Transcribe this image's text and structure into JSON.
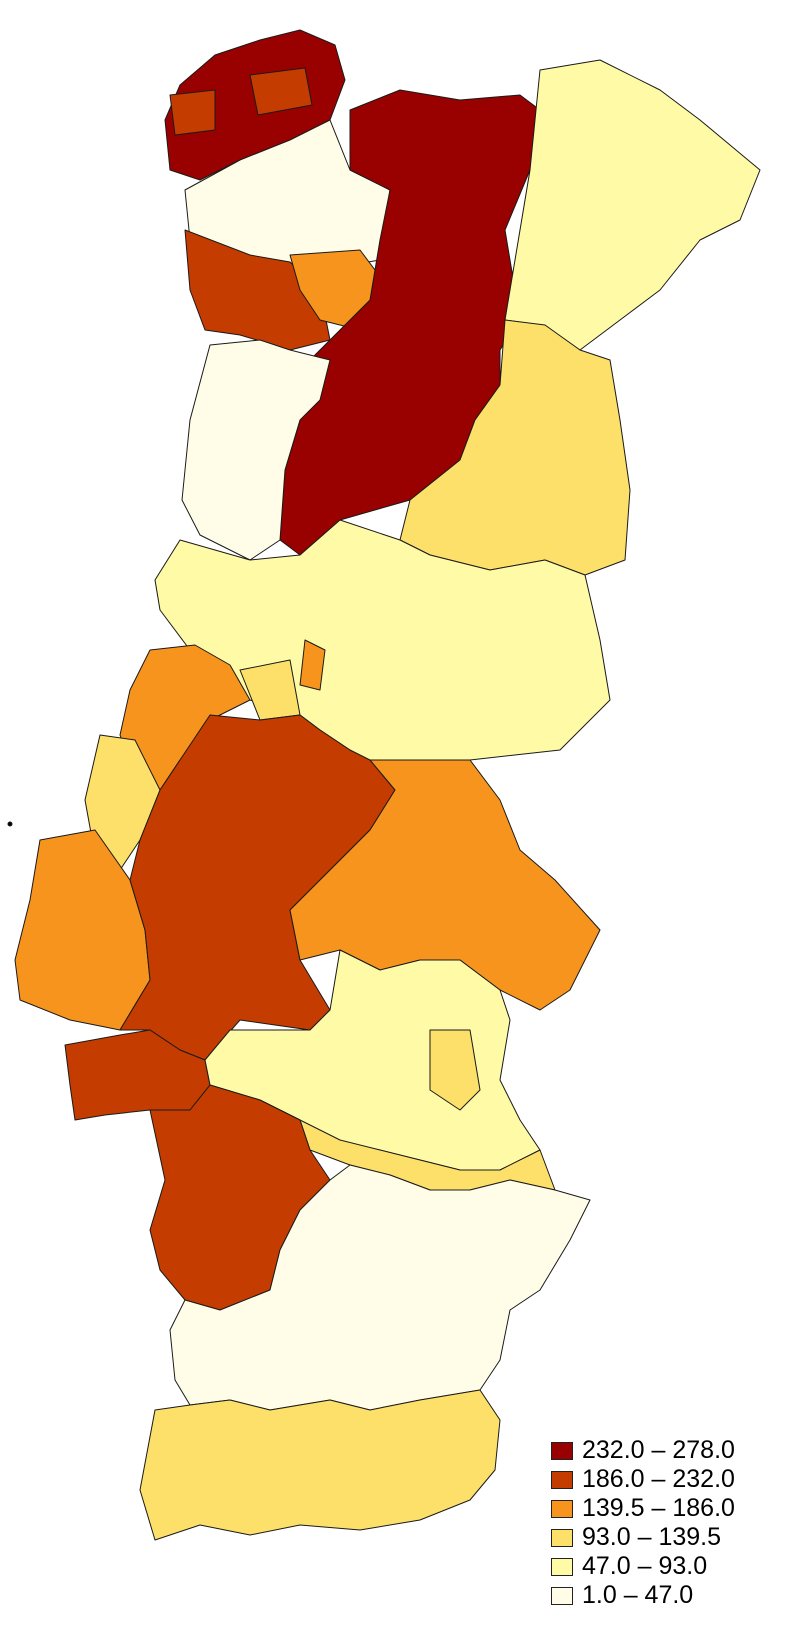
{
  "legend": {
    "items": [
      {
        "label": "232.0 – 278.0",
        "color": "#990000"
      },
      {
        "label": "186.0 – 232.0",
        "color": "#c43c00"
      },
      {
        "label": "139.5 – 186.0",
        "color": "#f7941d"
      },
      {
        "label": "93.0 – 139.5",
        "color": "#fde06a"
      },
      {
        "label": "47.0 – 93.0",
        "color": "#fefaa6"
      },
      {
        "label": "1.0 – 47.0",
        "color": "#fffde8"
      }
    ]
  }
}
